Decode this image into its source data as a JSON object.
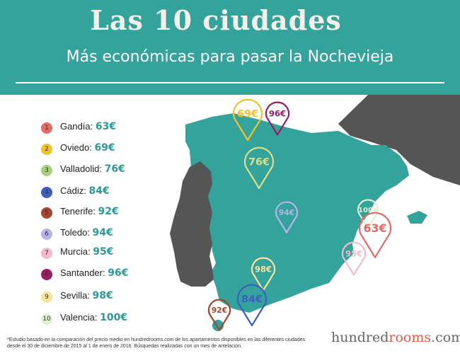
{
  "header": {
    "title": "Las 10 ciudades",
    "subtitle": "Más económicas para pasar la Nochevieja"
  },
  "legend": [
    {
      "n": "1",
      "city": "Gandía:",
      "price": "63€",
      "color": "#e36b63"
    },
    {
      "n": "2",
      "city": "Oviedo:",
      "price": "69€",
      "color": "#f2c12e"
    },
    {
      "n": "3",
      "city": "Valladolid:",
      "price": "76€",
      "color": "#a8cf7d"
    },
    {
      "n": "4",
      "city": "Cádiz:",
      "price": "84€",
      "color": "#3f5fc0"
    },
    {
      "n": "5",
      "city": "Tenerife:",
      "price": "92€",
      "color": "#a8452f"
    },
    {
      "n": "6",
      "city": "Toledo:",
      "price": "94€",
      "color": "#b7b4ea"
    },
    {
      "n": "7",
      "city": "Murcia:",
      "price": "95€",
      "color": "#f4b9cf"
    },
    {
      "n": "8",
      "city": "Santander:",
      "price": "96€",
      "color": "#9a1d63"
    },
    {
      "n": "9",
      "city": "Sevilla:",
      "price": "98€",
      "color": "#f8e39a"
    },
    {
      "n": "10",
      "city": "Valencia:",
      "price": "100€",
      "color": "#dff1cf"
    }
  ],
  "pins": [
    {
      "label": "69€",
      "color": "#f2c12e"
    },
    {
      "label": "96€",
      "color": "#9a1d63"
    },
    {
      "label": "76€",
      "color": "#d9e08c"
    },
    {
      "label": "94€",
      "color": "#b7b4ea"
    },
    {
      "label": "100€",
      "color": "#dff1cf"
    },
    {
      "label": "63€",
      "color": "#e36b63"
    },
    {
      "label": "95€",
      "color": "#f4b9cf"
    },
    {
      "label": "98€",
      "color": "#f8e39a"
    },
    {
      "label": "84€",
      "color": "#3f5fc0"
    },
    {
      "label": "92€",
      "color": "#a8452f"
    }
  ],
  "footnote": "*Estudio basado en la comparación del precio medio en hundredrooms.com de los apartamentos disponibles en las diferentes ciudades desde el 30 de diciembre de 2015 al 1 de enero de 2016. Búsquedas realizadas con un mes de antelación.",
  "brand": {
    "part1": "hundred",
    "part2": "rooms",
    "part3": ".com"
  },
  "colors": {
    "teal": "#33a39b",
    "land_gray": "#555555",
    "accent": "#e05a4a"
  }
}
